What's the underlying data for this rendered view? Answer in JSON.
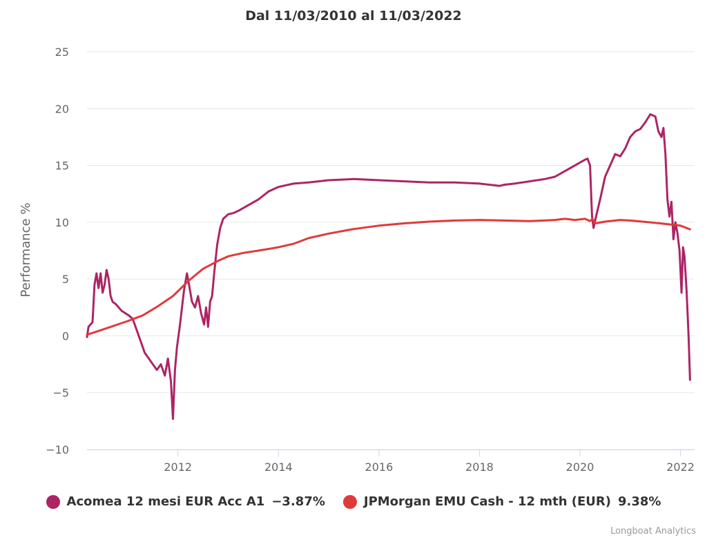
{
  "chart_data": {
    "type": "line",
    "title": "Dal 11/03/2010 al 11/03/2022",
    "xlabel": "",
    "ylabel": "Performance %",
    "xlim": [
      2010.19,
      2022.28
    ],
    "ylim": [
      -10,
      25
    ],
    "x_ticks": [
      "2012",
      "2014",
      "2016",
      "2018",
      "2020",
      "2022"
    ],
    "y_ticks": [
      "25",
      "20",
      "15",
      "10",
      "5",
      "0",
      "−5",
      "−10"
    ],
    "grid": true,
    "legend_position": "bottom",
    "series": [
      {
        "name": "Acomea 12 mesi EUR Acc A1",
        "final_value_label": "−3.87%",
        "color": "#ad2465",
        "x": [
          2010.19,
          2010.22,
          2010.26,
          2010.3,
          2010.34,
          2010.38,
          2010.42,
          2010.46,
          2010.5,
          2010.54,
          2010.58,
          2010.62,
          2010.66,
          2010.7,
          2010.76,
          2010.82,
          2010.88,
          2010.95,
          2011.02,
          2011.1,
          2011.18,
          2011.26,
          2011.34,
          2011.42,
          2011.5,
          2011.58,
          2011.66,
          2011.74,
          2011.8,
          2011.86,
          2011.9,
          2011.94,
          2011.98,
          2012.04,
          2012.12,
          2012.18,
          2012.22,
          2012.28,
          2012.34,
          2012.4,
          2012.46,
          2012.52,
          2012.56,
          2012.6,
          2012.64,
          2012.68,
          2012.72,
          2012.78,
          2012.84,
          2012.9,
          2013.0,
          2013.1,
          2013.2,
          2013.4,
          2013.6,
          2013.8,
          2014.0,
          2014.3,
          2014.6,
          2015.0,
          2015.5,
          2016.0,
          2016.5,
          2017.0,
          2017.5,
          2018.0,
          2018.4,
          2018.5,
          2018.7,
          2019.0,
          2019.3,
          2019.5,
          2019.7,
          2019.9,
          2020.1,
          2020.15,
          2020.2,
          2020.24,
          2020.27,
          2020.32,
          2020.4,
          2020.5,
          2020.6,
          2020.7,
          2020.8,
          2020.9,
          2021.0,
          2021.1,
          2021.2,
          2021.3,
          2021.4,
          2021.5,
          2021.56,
          2021.62,
          2021.66,
          2021.7,
          2021.74,
          2021.78,
          2021.82,
          2021.86,
          2021.9,
          2021.94,
          2021.98,
          2022.02,
          2022.05,
          2022.08,
          2022.12,
          2022.16,
          2022.19
        ],
        "y": [
          -0.1,
          0.8,
          1.0,
          1.2,
          4.5,
          5.5,
          4.2,
          5.5,
          3.8,
          4.5,
          5.8,
          5.0,
          3.5,
          3.0,
          2.8,
          2.5,
          2.2,
          2.0,
          1.8,
          1.5,
          0.5,
          -0.5,
          -1.5,
          -2.0,
          -2.5,
          -3.0,
          -2.5,
          -3.5,
          -2.0,
          -4.0,
          -7.3,
          -3.0,
          -1.0,
          1.0,
          4.0,
          5.5,
          4.5,
          3.0,
          2.5,
          3.5,
          2.0,
          1.0,
          2.5,
          0.8,
          3.0,
          3.5,
          5.5,
          8.0,
          9.5,
          10.3,
          10.7,
          10.8,
          11.0,
          11.5,
          12.0,
          12.7,
          13.1,
          13.4,
          13.5,
          13.7,
          13.8,
          13.7,
          13.6,
          13.5,
          13.5,
          13.4,
          13.2,
          13.3,
          13.4,
          13.6,
          13.8,
          14.0,
          14.5,
          15.0,
          15.5,
          15.6,
          15.0,
          10.5,
          9.5,
          10.5,
          12.0,
          14.0,
          15.0,
          16.0,
          15.8,
          16.5,
          17.5,
          18.0,
          18.2,
          18.8,
          19.5,
          19.3,
          18.0,
          17.5,
          18.3,
          16.0,
          12.0,
          10.5,
          11.8,
          8.5,
          10.0,
          9.0,
          7.5,
          3.8,
          7.8,
          7.0,
          4.0,
          0.0,
          -3.87
        ]
      },
      {
        "name": "JPMorgan EMU Cash - 12 mth (EUR)",
        "final_value_label": "9.38%",
        "color": "#df3a3a",
        "x": [
          2010.19,
          2010.4,
          2010.6,
          2010.8,
          2011.0,
          2011.3,
          2011.6,
          2011.9,
          2012.2,
          2012.5,
          2012.8,
          2013.0,
          2013.3,
          2013.6,
          2014.0,
          2014.3,
          2014.6,
          2015.0,
          2015.5,
          2016.0,
          2016.5,
          2017.0,
          2017.5,
          2018.0,
          2018.5,
          2019.0,
          2019.5,
          2019.7,
          2019.9,
          2020.1,
          2020.2,
          2020.25,
          2020.3,
          2020.5,
          2020.8,
          2021.0,
          2021.5,
          2022.0,
          2022.19
        ],
        "y": [
          0.1,
          0.4,
          0.7,
          1.0,
          1.3,
          1.8,
          2.6,
          3.5,
          4.8,
          5.9,
          6.6,
          7.0,
          7.3,
          7.5,
          7.8,
          8.1,
          8.6,
          9.0,
          9.4,
          9.7,
          9.9,
          10.05,
          10.15,
          10.2,
          10.15,
          10.1,
          10.2,
          10.3,
          10.2,
          10.3,
          10.1,
          10.3,
          9.9,
          10.05,
          10.2,
          10.15,
          9.95,
          9.7,
          9.38
        ]
      }
    ]
  },
  "credits": "Longboat Analytics"
}
